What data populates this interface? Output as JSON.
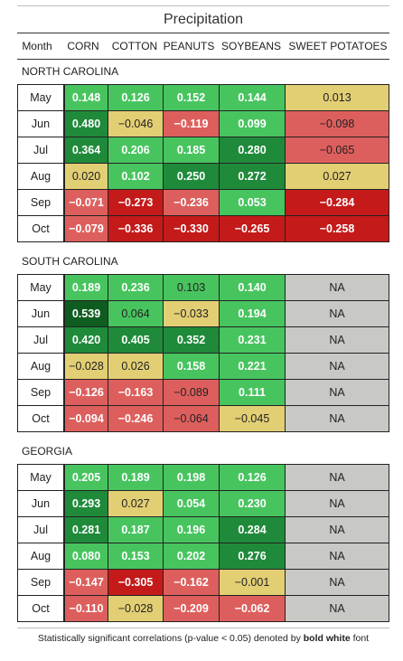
{
  "title": "Precipitation",
  "headers": [
    "Month",
    "CORN",
    "COTTON",
    "PEANUTS",
    "SOYBEANS",
    "SWEET POTATOES"
  ],
  "colors": {
    "yellow": "#e2cf74",
    "green": "#48c45f",
    "dark_green": "#1f8a3a",
    "darkest_green": "#0f5c20",
    "red": "#dd5f5d",
    "dark_red": "#c41a1a",
    "na_gray": "#c8c8c5"
  },
  "sections": [
    {
      "name": "NORTH CAROLINA",
      "rows": [
        {
          "month": "May",
          "cells": [
            {
              "v": "0.148",
              "c": "g",
              "sig": true
            },
            {
              "v": "0.126",
              "c": "g",
              "sig": true
            },
            {
              "v": "0.152",
              "c": "g",
              "sig": true
            },
            {
              "v": "0.144",
              "c": "g",
              "sig": true
            },
            {
              "v": "0.013",
              "c": "y",
              "sig": false
            }
          ]
        },
        {
          "month": "Jun",
          "cells": [
            {
              "v": "0.480",
              "c": "dg",
              "sig": true
            },
            {
              "v": "−0.046",
              "c": "y",
              "sig": false
            },
            {
              "v": "−0.119",
              "c": "r",
              "sig": true
            },
            {
              "v": "0.099",
              "c": "g",
              "sig": true
            },
            {
              "v": "−0.098",
              "c": "r",
              "sig": false
            }
          ]
        },
        {
          "month": "Jul",
          "cells": [
            {
              "v": "0.364",
              "c": "dg",
              "sig": true
            },
            {
              "v": "0.206",
              "c": "g",
              "sig": true
            },
            {
              "v": "0.185",
              "c": "g",
              "sig": true
            },
            {
              "v": "0.280",
              "c": "dg",
              "sig": true
            },
            {
              "v": "−0.065",
              "c": "r",
              "sig": false
            }
          ]
        },
        {
          "month": "Aug",
          "cells": [
            {
              "v": "0.020",
              "c": "y",
              "sig": false
            },
            {
              "v": "0.102",
              "c": "g",
              "sig": true
            },
            {
              "v": "0.250",
              "c": "dg",
              "sig": true
            },
            {
              "v": "0.272",
              "c": "dg",
              "sig": true
            },
            {
              "v": "0.027",
              "c": "y",
              "sig": false
            }
          ]
        },
        {
          "month": "Sep",
          "cells": [
            {
              "v": "−0.071",
              "c": "r",
              "sig": true
            },
            {
              "v": "−0.273",
              "c": "dr",
              "sig": true
            },
            {
              "v": "−0.236",
              "c": "r",
              "sig": true
            },
            {
              "v": "0.053",
              "c": "g",
              "sig": true
            },
            {
              "v": "−0.284",
              "c": "dr",
              "sig": true
            }
          ]
        },
        {
          "month": "Oct",
          "cells": [
            {
              "v": "−0.079",
              "c": "r",
              "sig": true
            },
            {
              "v": "−0.336",
              "c": "dr",
              "sig": true
            },
            {
              "v": "−0.330",
              "c": "dr",
              "sig": true
            },
            {
              "v": "−0.265",
              "c": "dr",
              "sig": true
            },
            {
              "v": "−0.258",
              "c": "dr",
              "sig": true
            }
          ]
        }
      ]
    },
    {
      "name": "SOUTH CAROLINA",
      "rows": [
        {
          "month": "May",
          "cells": [
            {
              "v": "0.189",
              "c": "g",
              "sig": true
            },
            {
              "v": "0.236",
              "c": "g",
              "sig": true
            },
            {
              "v": "0.103",
              "c": "g",
              "sig": false
            },
            {
              "v": "0.140",
              "c": "g",
              "sig": true
            },
            {
              "v": "NA",
              "c": "na",
              "sig": false
            }
          ]
        },
        {
          "month": "Jun",
          "cells": [
            {
              "v": "0.539",
              "c": "xg",
              "sig": true
            },
            {
              "v": "0.064",
              "c": "g",
              "sig": false
            },
            {
              "v": "−0.033",
              "c": "y",
              "sig": false
            },
            {
              "v": "0.194",
              "c": "g",
              "sig": true
            },
            {
              "v": "NA",
              "c": "na",
              "sig": false
            }
          ]
        },
        {
          "month": "Jul",
          "cells": [
            {
              "v": "0.420",
              "c": "dg",
              "sig": true
            },
            {
              "v": "0.405",
              "c": "dg",
              "sig": true
            },
            {
              "v": "0.352",
              "c": "dg",
              "sig": true
            },
            {
              "v": "0.231",
              "c": "g",
              "sig": true
            },
            {
              "v": "NA",
              "c": "na",
              "sig": false
            }
          ]
        },
        {
          "month": "Aug",
          "cells": [
            {
              "v": "−0.028",
              "c": "y",
              "sig": false
            },
            {
              "v": "0.026",
              "c": "y",
              "sig": false
            },
            {
              "v": "0.158",
              "c": "g",
              "sig": true
            },
            {
              "v": "0.221",
              "c": "g",
              "sig": true
            },
            {
              "v": "NA",
              "c": "na",
              "sig": false
            }
          ]
        },
        {
          "month": "Sep",
          "cells": [
            {
              "v": "−0.126",
              "c": "r",
              "sig": true
            },
            {
              "v": "−0.163",
              "c": "r",
              "sig": true
            },
            {
              "v": "−0.089",
              "c": "r",
              "sig": false
            },
            {
              "v": "0.111",
              "c": "g",
              "sig": true
            },
            {
              "v": "NA",
              "c": "na",
              "sig": false
            }
          ]
        },
        {
          "month": "Oct",
          "cells": [
            {
              "v": "−0.094",
              "c": "r",
              "sig": true
            },
            {
              "v": "−0.246",
              "c": "r",
              "sig": true
            },
            {
              "v": "−0.064",
              "c": "r",
              "sig": false
            },
            {
              "v": "−0.045",
              "c": "y",
              "sig": false
            },
            {
              "v": "NA",
              "c": "na",
              "sig": false
            }
          ]
        }
      ]
    },
    {
      "name": "GEORGIA",
      "rows": [
        {
          "month": "May",
          "cells": [
            {
              "v": "0.205",
              "c": "g",
              "sig": true
            },
            {
              "v": "0.189",
              "c": "g",
              "sig": true
            },
            {
              "v": "0.198",
              "c": "g",
              "sig": true
            },
            {
              "v": "0.126",
              "c": "g",
              "sig": true
            },
            {
              "v": "NA",
              "c": "na",
              "sig": false
            }
          ]
        },
        {
          "month": "Jun",
          "cells": [
            {
              "v": "0.293",
              "c": "dg",
              "sig": true
            },
            {
              "v": "0.027",
              "c": "y",
              "sig": false
            },
            {
              "v": "0.054",
              "c": "g",
              "sig": true
            },
            {
              "v": "0.230",
              "c": "g",
              "sig": true
            },
            {
              "v": "NA",
              "c": "na",
              "sig": false
            }
          ]
        },
        {
          "month": "Jul",
          "cells": [
            {
              "v": "0.281",
              "c": "dg",
              "sig": true
            },
            {
              "v": "0.187",
              "c": "g",
              "sig": true
            },
            {
              "v": "0.196",
              "c": "g",
              "sig": true
            },
            {
              "v": "0.284",
              "c": "dg",
              "sig": true
            },
            {
              "v": "NA",
              "c": "na",
              "sig": false
            }
          ]
        },
        {
          "month": "Aug",
          "cells": [
            {
              "v": "0.080",
              "c": "g",
              "sig": true
            },
            {
              "v": "0.153",
              "c": "g",
              "sig": true
            },
            {
              "v": "0.202",
              "c": "g",
              "sig": true
            },
            {
              "v": "0.276",
              "c": "dg",
              "sig": true
            },
            {
              "v": "NA",
              "c": "na",
              "sig": false
            }
          ]
        },
        {
          "month": "Sep",
          "cells": [
            {
              "v": "−0.147",
              "c": "r",
              "sig": true
            },
            {
              "v": "−0.305",
              "c": "dr",
              "sig": true
            },
            {
              "v": "−0.162",
              "c": "r",
              "sig": true
            },
            {
              "v": "−0.001",
              "c": "y",
              "sig": false
            },
            {
              "v": "NA",
              "c": "na",
              "sig": false
            }
          ]
        },
        {
          "month": "Oct",
          "cells": [
            {
              "v": "−0.110",
              "c": "r",
              "sig": true
            },
            {
              "v": "−0.028",
              "c": "y",
              "sig": false
            },
            {
              "v": "−0.209",
              "c": "r",
              "sig": true
            },
            {
              "v": "−0.062",
              "c": "r",
              "sig": true
            },
            {
              "v": "NA",
              "c": "na",
              "sig": false
            }
          ]
        }
      ]
    }
  ],
  "footer": {
    "text": "Statistically significant correlations (p-value < 0.05) denoted by ",
    "bold": "bold white",
    "suffix": " font"
  }
}
